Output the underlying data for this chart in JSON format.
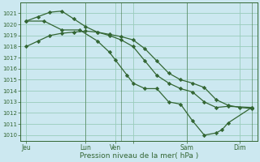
{
  "xlabel": "Pression niveau de la mer( hPa )",
  "bg_color": "#cce8f0",
  "grid_color": "#99ccbb",
  "line_color": "#336633",
  "ylim": [
    1009.5,
    1022.0
  ],
  "yticks": [
    1010,
    1011,
    1012,
    1013,
    1014,
    1015,
    1016,
    1017,
    1018,
    1019,
    1020,
    1021
  ],
  "xlim": [
    0,
    20
  ],
  "xtick_positions": [
    0.5,
    5.5,
    8.0,
    9.5,
    14.0,
    18.5
  ],
  "xtick_labels": [
    "Jeu",
    "Lun",
    "Ven",
    "",
    "Sam",
    "Dim"
  ],
  "vlines": [
    5.5,
    8.5,
    14.0,
    19.5
  ],
  "lineA_x": [
    0.5,
    1.5,
    2.5,
    3.5,
    4.5,
    5.5,
    6.5,
    7.5,
    8.5,
    9.5,
    10.5,
    11.5,
    12.5,
    13.5,
    14.5,
    15.5,
    16.5,
    17.5,
    18.5,
    19.5
  ],
  "lineA_y": [
    1018.0,
    1018.5,
    1019.0,
    1019.2,
    1019.3,
    1019.4,
    1019.3,
    1019.1,
    1018.9,
    1018.6,
    1017.8,
    1016.7,
    1015.6,
    1015.0,
    1014.7,
    1014.3,
    1013.2,
    1012.7,
    1012.5,
    1012.4
  ],
  "lineB_x": [
    0.5,
    1.5,
    2.5,
    3.5,
    4.5,
    5.5,
    6.5,
    7.5,
    8.5,
    9.5,
    10.5,
    11.5,
    12.5,
    13.5,
    14.5,
    15.5,
    16.5,
    17.5,
    19.5
  ],
  "lineB_y": [
    1020.3,
    1020.7,
    1021.1,
    1021.2,
    1020.5,
    1019.8,
    1019.3,
    1019.0,
    1018.6,
    1018.0,
    1016.7,
    1015.4,
    1014.7,
    1014.2,
    1013.9,
    1013.0,
    1012.5,
    1012.6,
    1012.5
  ],
  "lineC_x": [
    0.5,
    2.0,
    3.5,
    5.0,
    6.5,
    7.5,
    8.0,
    9.0,
    9.5,
    10.5,
    11.5,
    12.5,
    13.5,
    14.5,
    15.5,
    16.5,
    17.0,
    17.5,
    19.5
  ],
  "lineC_y": [
    1020.3,
    1020.3,
    1019.5,
    1019.5,
    1018.5,
    1017.5,
    1016.8,
    1015.4,
    1014.7,
    1014.2,
    1014.2,
    1013.0,
    1012.8,
    1011.3,
    1010.0,
    1010.2,
    1010.5,
    1011.1,
    1012.5
  ]
}
